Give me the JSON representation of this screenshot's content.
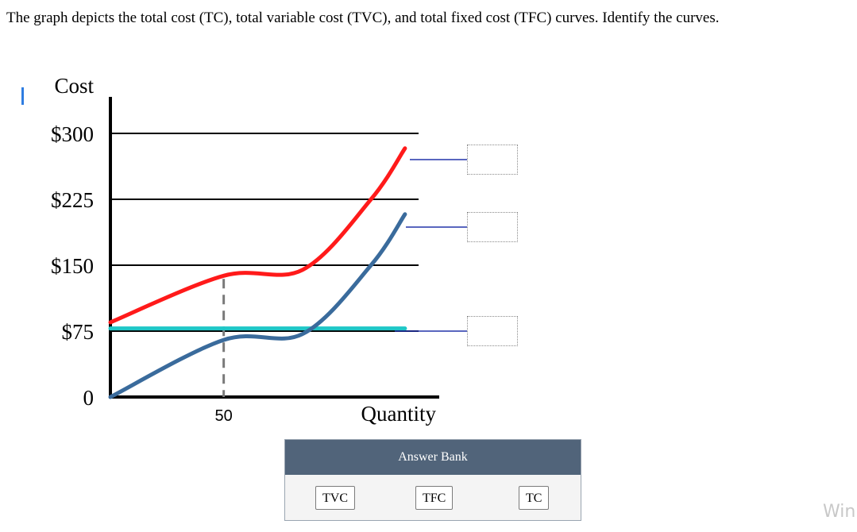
{
  "question": {
    "text": "The graph depicts the total cost (TC), total variable cost (TVC), and total fixed cost (TFC) curves. Identify the curves."
  },
  "chart_data": {
    "type": "line",
    "ylabel": "Cost",
    "xlabel": "Quantity",
    "y_ticks": [
      "$300",
      "$225",
      "$150",
      "$75",
      "0"
    ],
    "y_values": [
      300,
      225,
      150,
      75,
      0
    ],
    "x_ticks": [
      "50"
    ],
    "x_values": [
      50
    ],
    "ylim": [
      0,
      300
    ],
    "grid": "horizontal lines at tick values",
    "series": [
      {
        "color": "#ff1a1a",
        "points": [
          [
            0,
            85
          ],
          [
            50,
            138
          ],
          [
            85,
            145
          ],
          [
            115,
            225
          ],
          [
            130,
            283
          ]
        ]
      },
      {
        "color": "#3a6b9c",
        "points": [
          [
            0,
            0
          ],
          [
            50,
            65
          ],
          [
            85,
            72
          ],
          [
            115,
            150
          ],
          [
            130,
            208
          ]
        ]
      },
      {
        "color": "#1fc7c7",
        "points": [
          [
            0,
            78
          ],
          [
            130,
            78
          ]
        ]
      }
    ],
    "reference_line": {
      "x": 50,
      "style": "dashed"
    }
  },
  "answer_bank": {
    "title": "Answer Bank",
    "options": [
      "TVC",
      "TFC",
      "TC"
    ]
  },
  "watermark": "Win"
}
